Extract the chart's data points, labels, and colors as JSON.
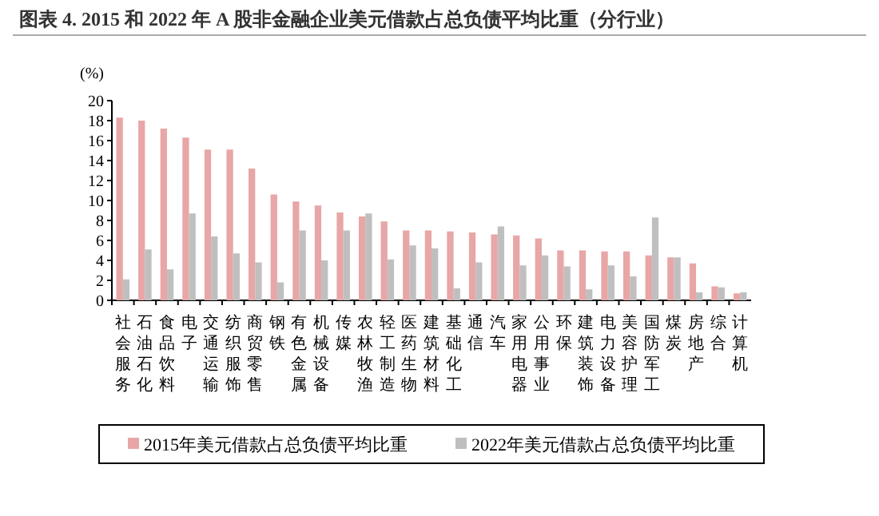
{
  "chart_data": {
    "type": "bar",
    "title": "图表 4. 2015 和 2022 年 A 股非金融企业美元借款占总负债平均比重（分行业）",
    "ylabel": "(%)",
    "categories": [
      "社会服务",
      "石油石化",
      "食品饮料",
      "电子",
      "交通运输",
      "纺织服饰",
      "商贸零售",
      "钢铁",
      "有色金属",
      "机械设备",
      "传媒",
      "农林牧渔",
      "轻工制造",
      "医药生物",
      "建筑材料",
      "基础化工",
      "通信",
      "汽车",
      "家用电器",
      "公用事业",
      "环保",
      "建筑装饰",
      "电力设备",
      "美容护理",
      "国防军工",
      "煤炭",
      "房地产",
      "综合",
      "计算机"
    ],
    "series": [
      {
        "name": "2015年美元借款占总负债平均比重",
        "color": "#e8a6a6",
        "values": [
          18.3,
          18.0,
          17.2,
          16.3,
          15.1,
          15.1,
          13.2,
          10.6,
          9.9,
          9.5,
          8.8,
          8.4,
          7.9,
          7.0,
          7.0,
          6.9,
          6.8,
          6.6,
          6.5,
          6.2,
          5.0,
          5.0,
          4.9,
          4.9,
          4.5,
          4.3,
          3.7,
          1.4,
          0.7
        ]
      },
      {
        "name": "2022年美元借款占总负债平均比重",
        "color": "#bfbfbf",
        "values": [
          2.1,
          5.1,
          3.1,
          8.7,
          6.4,
          4.7,
          3.8,
          1.8,
          7.0,
          4.0,
          7.0,
          8.7,
          4.1,
          5.5,
          5.2,
          1.2,
          3.8,
          7.4,
          3.5,
          4.5,
          3.4,
          1.1,
          3.5,
          2.4,
          8.3,
          4.3,
          0.8,
          1.3,
          0.8
        ]
      }
    ],
    "ylim": [
      0,
      20
    ],
    "yticks": [
      0,
      2,
      4,
      6,
      8,
      10,
      12,
      14,
      16,
      18,
      20
    ],
    "grid": false,
    "legend": "bottom"
  }
}
